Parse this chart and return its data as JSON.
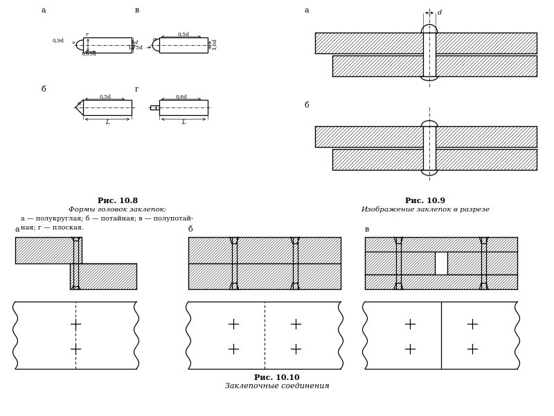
{
  "title_108": "Рис. 10.8",
  "subtitle_108": "Формы головок заклепок:",
  "desc_108_1": "а — полукруглая; б — потайная; в — полупотай-",
  "desc_108_2": "ная; г — плоская.",
  "title_109": "Рис. 10.9",
  "subtitle_109": "Изображение заклепок в разрезе",
  "title_1010": "Рис. 10.10",
  "subtitle_1010": "Заклепочные соединения",
  "bg_color": "#ffffff"
}
